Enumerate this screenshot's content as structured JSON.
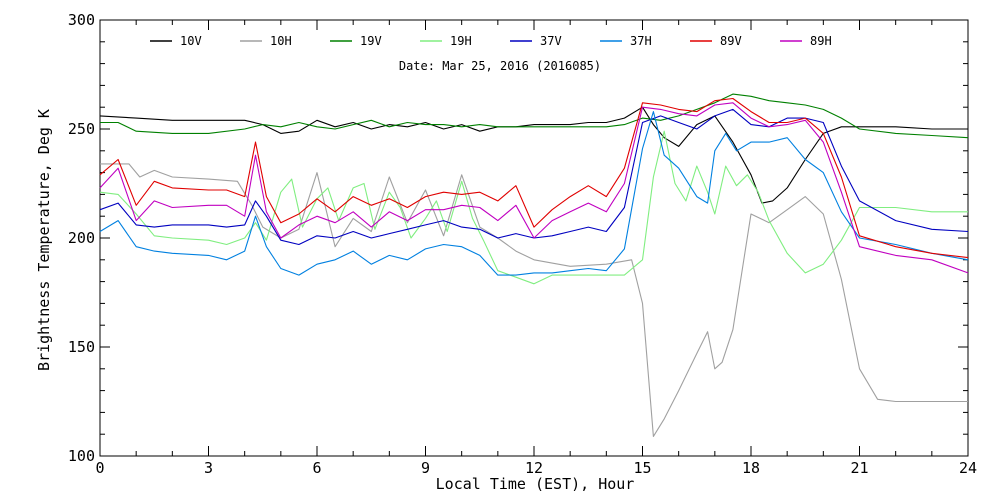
{
  "chart_data": {
    "type": "line",
    "title": "",
    "annotation": "Date: Mar 25, 2016 (2016085)",
    "xlabel": "Local Time (EST), Hour",
    "ylabel": "Brightness Temperature, Deg K",
    "xlim": [
      0,
      24
    ],
    "ylim": [
      100,
      300
    ],
    "x_ticks": [
      "0",
      "3",
      "6",
      "9",
      "12",
      "15",
      "18",
      "21",
      "24"
    ],
    "y_ticks": [
      "100",
      "150",
      "200",
      "250",
      "300"
    ],
    "grid": false,
    "legend_position": "top",
    "series": [
      {
        "name": "10V",
        "color": "#000000",
        "x": [
          0,
          1,
          2,
          3,
          4,
          4.5,
          5,
          5.5,
          6,
          6.5,
          7,
          7.5,
          8,
          8.5,
          9,
          9.5,
          10,
          10.5,
          11,
          11.5,
          12,
          12.5,
          13,
          13.5,
          14,
          14.5,
          15,
          15.3,
          15.6,
          16,
          16.5,
          17,
          17.5,
          18,
          18.3,
          18.6,
          19,
          19.5,
          20,
          20.5,
          21,
          22,
          23,
          24
        ],
        "y": [
          256,
          255,
          254,
          254,
          254,
          252,
          248,
          249,
          254,
          251,
          253,
          250,
          252,
          251,
          253,
          250,
          252,
          249,
          251,
          251,
          252,
          252,
          252,
          253,
          253,
          255,
          260,
          252,
          246,
          242,
          252,
          256,
          244,
          229,
          216,
          217,
          223,
          236,
          248,
          251,
          251,
          251,
          250,
          250
        ]
      },
      {
        "name": "10H",
        "color": "#a0a0a0",
        "x": [
          0,
          0.8,
          1.1,
          1.5,
          2,
          3,
          3.8,
          4.2,
          4.5,
          5,
          5.5,
          6,
          6.5,
          7,
          7.5,
          8,
          8.5,
          9,
          9.5,
          10,
          10.5,
          11,
          11.5,
          12,
          13,
          14,
          14.7,
          15,
          15.3,
          15.6,
          16,
          16.5,
          16.8,
          17,
          17.2,
          17.5,
          17.8,
          18,
          18.5,
          19,
          19.5,
          20,
          20.5,
          21,
          21.5,
          22,
          23,
          24
        ],
        "y": [
          234,
          234,
          228,
          231,
          228,
          227,
          226,
          215,
          205,
          200,
          204,
          230,
          196,
          209,
          203,
          228,
          207,
          222,
          201,
          229,
          205,
          200,
          194,
          190,
          187,
          188,
          190,
          170,
          109,
          117,
          130,
          147,
          157,
          140,
          143,
          158,
          190,
          211,
          207,
          213,
          219,
          211,
          181,
          140,
          126,
          125,
          125,
          125
        ]
      },
      {
        "name": "19V",
        "color": "#008000",
        "x": [
          0,
          0.5,
          1,
          2,
          3,
          4,
          4.5,
          5,
          5.5,
          6,
          6.5,
          7,
          7.5,
          8,
          8.5,
          9,
          9.5,
          10,
          10.5,
          11,
          12,
          13,
          14,
          14.5,
          15,
          15.5,
          16,
          16.5,
          17,
          17.5,
          18,
          18.5,
          19,
          19.5,
          20,
          20.5,
          21,
          22,
          23,
          24
        ],
        "y": [
          253,
          253,
          249,
          248,
          248,
          250,
          252,
          251,
          253,
          251,
          250,
          252,
          254,
          251,
          253,
          252,
          252,
          251,
          252,
          251,
          251,
          251,
          251,
          252,
          255,
          254,
          256,
          259,
          262,
          266,
          265,
          263,
          262,
          261,
          259,
          255,
          250,
          248,
          247,
          246
        ]
      },
      {
        "name": "19H",
        "color": "#80ee80",
        "x": [
          0,
          0.5,
          1,
          1.5,
          2,
          3,
          3.5,
          4,
          4.3,
          4.6,
          5,
          5.3,
          5.6,
          6,
          6.3,
          6.6,
          7,
          7.3,
          7.6,
          8,
          8.3,
          8.6,
          9,
          9.3,
          9.6,
          10,
          10.3,
          10.6,
          11,
          11.5,
          12,
          12.5,
          13,
          14,
          14.5,
          15,
          15.3,
          15.6,
          15.9,
          16.2,
          16.5,
          16.8,
          17,
          17.3,
          17.6,
          17.9,
          18.2,
          18.5,
          19,
          19.5,
          20,
          20.5,
          21,
          22,
          23,
          24
        ],
        "y": [
          221,
          220,
          211,
          201,
          200,
          199,
          197,
          200,
          207,
          199,
          221,
          227,
          205,
          218,
          223,
          208,
          223,
          225,
          204,
          221,
          214,
          200,
          209,
          217,
          203,
          226,
          209,
          199,
          185,
          182,
          179,
          183,
          183,
          183,
          183,
          190,
          228,
          249,
          225,
          217,
          233,
          221,
          211,
          233,
          224,
          229,
          221,
          208,
          193,
          184,
          188,
          199,
          214,
          214,
          212,
          212
        ]
      },
      {
        "name": "37V",
        "color": "#0000c0",
        "x": [
          0,
          0.5,
          1,
          1.5,
          2,
          3,
          3.5,
          4,
          4.3,
          4.6,
          5,
          5.5,
          6,
          6.5,
          7,
          7.5,
          8,
          8.5,
          9,
          9.5,
          10,
          10.5,
          11,
          11.5,
          12,
          12.5,
          13,
          13.5,
          14,
          14.5,
          15,
          15.5,
          16,
          16.5,
          17,
          17.5,
          18,
          18.5,
          19,
          19.5,
          20,
          20.5,
          21,
          22,
          23,
          24
        ],
        "y": [
          213,
          216,
          206,
          205,
          206,
          206,
          205,
          206,
          217,
          210,
          199,
          197,
          201,
          200,
          203,
          200,
          202,
          204,
          206,
          208,
          205,
          204,
          200,
          202,
          200,
          201,
          203,
          205,
          203,
          214,
          253,
          256,
          253,
          250,
          256,
          259,
          252,
          251,
          255,
          255,
          253,
          233,
          217,
          208,
          204,
          203
        ]
      },
      {
        "name": "37H",
        "color": "#0080e0",
        "x": [
          0,
          0.5,
          1,
          1.5,
          2,
          3,
          3.5,
          4,
          4.3,
          4.6,
          5,
          5.5,
          6,
          6.5,
          7,
          7.5,
          8,
          8.5,
          9,
          9.5,
          10,
          10.5,
          11,
          11.5,
          12,
          12.5,
          13,
          13.5,
          14,
          14.5,
          15,
          15.3,
          15.6,
          16,
          16.5,
          16.8,
          17,
          17.3,
          17.6,
          18,
          18.5,
          19,
          19.5,
          20,
          20.5,
          21,
          22,
          23,
          24
        ],
        "y": [
          203,
          208,
          196,
          194,
          193,
          192,
          190,
          194,
          210,
          196,
          186,
          183,
          188,
          190,
          194,
          188,
          192,
          190,
          195,
          197,
          196,
          192,
          183,
          183,
          184,
          184,
          185,
          186,
          185,
          195,
          241,
          258,
          238,
          232,
          219,
          216,
          240,
          248,
          240,
          244,
          244,
          246,
          236,
          230,
          212,
          200,
          197,
          193,
          190
        ]
      },
      {
        "name": "89V",
        "color": "#e00000",
        "x": [
          0,
          0.5,
          1,
          1.5,
          2,
          3,
          3.5,
          4,
          4.3,
          4.6,
          5,
          5.5,
          6,
          6.5,
          7,
          7.5,
          8,
          8.5,
          9,
          9.5,
          10,
          10.5,
          11,
          11.5,
          12,
          12.5,
          13,
          13.5,
          14,
          14.5,
          15,
          15.5,
          16,
          16.5,
          17,
          17.5,
          18,
          18.5,
          19,
          19.5,
          20,
          20.5,
          21,
          22,
          23,
          24
        ],
        "y": [
          229,
          236,
          215,
          226,
          223,
          222,
          222,
          219,
          244,
          219,
          207,
          211,
          218,
          212,
          219,
          215,
          218,
          214,
          219,
          221,
          220,
          221,
          217,
          224,
          205,
          213,
          219,
          224,
          219,
          232,
          262,
          261,
          259,
          258,
          263,
          264,
          258,
          253,
          253,
          255,
          248,
          228,
          201,
          196,
          193,
          191
        ]
      },
      {
        "name": "89H",
        "color": "#c000c0",
        "x": [
          0,
          0.5,
          1,
          1.5,
          2,
          3,
          3.5,
          4,
          4.3,
          4.6,
          5,
          5.5,
          6,
          6.5,
          7,
          7.5,
          8,
          8.5,
          9,
          9.5,
          10,
          10.5,
          11,
          11.5,
          12,
          12.5,
          13,
          13.5,
          14,
          14.5,
          15,
          15.5,
          16,
          16.5,
          17,
          17.5,
          18,
          18.5,
          19,
          19.5,
          20,
          20.5,
          21,
          22,
          23,
          24
        ],
        "y": [
          223,
          232,
          208,
          217,
          214,
          215,
          215,
          210,
          238,
          212,
          200,
          206,
          210,
          207,
          212,
          205,
          212,
          208,
          213,
          213,
          215,
          214,
          208,
          215,
          200,
          208,
          212,
          216,
          212,
          225,
          260,
          259,
          257,
          256,
          261,
          262,
          255,
          251,
          252,
          254,
          244,
          221,
          196,
          192,
          190,
          184
        ]
      }
    ]
  }
}
